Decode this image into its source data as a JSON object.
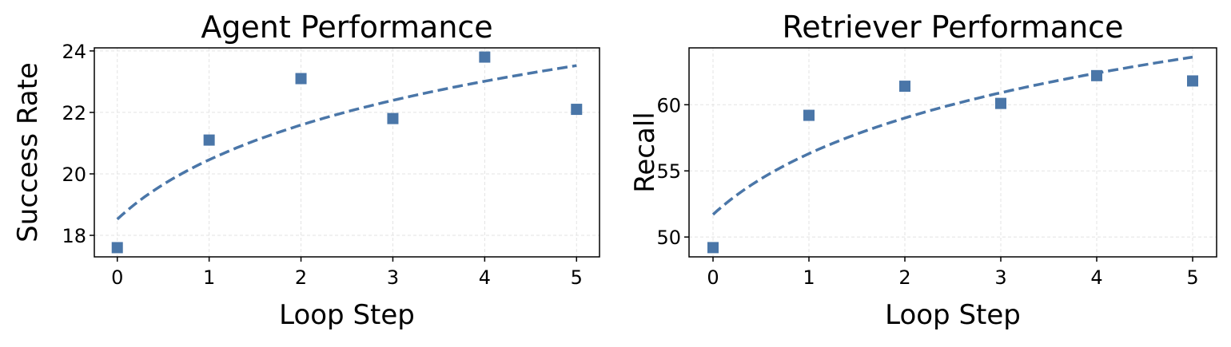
{
  "chart_data": [
    {
      "type": "scatter",
      "title": "Agent Performance",
      "xlabel": "Loop Step",
      "ylabel": "Success Rate",
      "x": [
        0,
        1,
        2,
        3,
        4,
        5
      ],
      "values": [
        17.6,
        21.1,
        23.1,
        21.8,
        23.8,
        22.1
      ],
      "xticks": [
        0,
        1,
        2,
        3,
        4,
        5
      ],
      "yticks": [
        18,
        20,
        22,
        24
      ],
      "xlim": [
        -0.25,
        5.25
      ],
      "ylim": [
        17.3,
        24.1
      ],
      "trendline": "logarithmic fit, dashed",
      "marker": "square",
      "grid": true,
      "color": "#4a76a8"
    },
    {
      "type": "scatter",
      "title": "Retriever Performance",
      "xlabel": "Loop Step",
      "ylabel": "Recall",
      "x": [
        0,
        1,
        2,
        3,
        4,
        5
      ],
      "values": [
        49.2,
        59.2,
        61.4,
        60.1,
        62.2,
        61.8
      ],
      "xticks": [
        0,
        1,
        2,
        3,
        4,
        5
      ],
      "yticks": [
        50,
        55,
        60
      ],
      "xlim": [
        -0.25,
        5.25
      ],
      "ylim": [
        48.5,
        64.3
      ],
      "trendline": "logarithmic fit, dashed",
      "marker": "square",
      "grid": true,
      "color": "#4a76a8"
    }
  ]
}
